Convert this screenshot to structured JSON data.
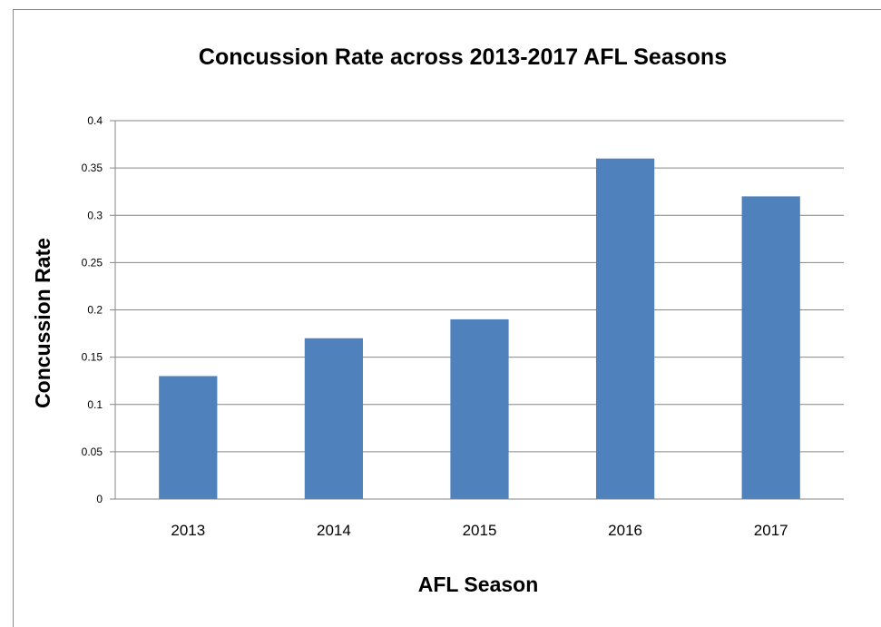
{
  "chart_data": {
    "type": "bar",
    "title": "Concussion Rate across 2013-2017  AFL Seasons",
    "xlabel": "AFL Season",
    "ylabel": "Concussion  Rate",
    "categories": [
      "2013",
      "2014",
      "2015",
      "2016",
      "2017"
    ],
    "values": [
      0.13,
      0.17,
      0.19,
      0.36,
      0.32
    ],
    "ylim": [
      0,
      0.4
    ],
    "yticks": [
      "0",
      "0.05",
      "0.1",
      "0.15",
      "0.2",
      "0.25",
      "0.3",
      "0.35",
      "0.4"
    ],
    "grid": true,
    "legend": "none",
    "colors": {
      "bar": "#4f81bd",
      "grid": "#868686",
      "axis": "#868686"
    }
  }
}
